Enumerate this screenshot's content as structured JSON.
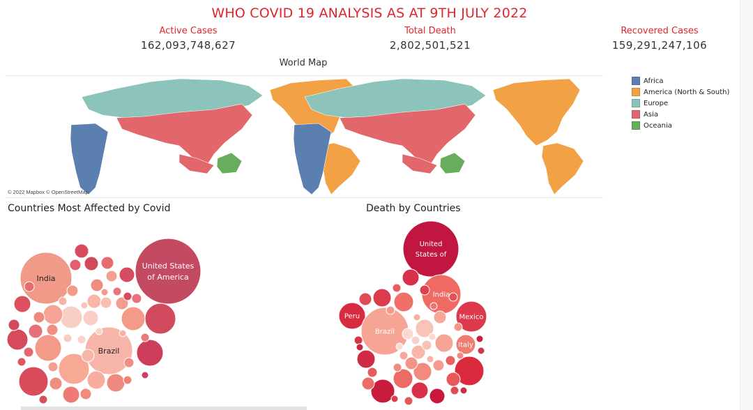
{
  "title": "WHO COVID 19 ANALYSIS AS AT 9TH JULY 2022",
  "kpis": {
    "active": {
      "label": "Active Cases",
      "value": "162,093,748,627"
    },
    "death": {
      "label": "Total Death",
      "value": "2,802,501,521"
    },
    "recovered": {
      "label": "Recovered Cases",
      "value": "159,291,247,106"
    }
  },
  "map": {
    "title": "World Map",
    "credit": "© 2022 Mapbox © OpenStreetMap"
  },
  "legend": [
    {
      "label": "Africa",
      "color": "#5b7fae"
    },
    {
      "label": "America (North & South)",
      "color": "#f2a144"
    },
    {
      "label": "Europe",
      "color": "#8cc4bb"
    },
    {
      "label": "Asia",
      "color": "#e2676c"
    },
    {
      "label": "Oceania",
      "color": "#67ad5d"
    }
  ],
  "chart_data": [
    {
      "type": "bubble",
      "title": "Countries Most Affected by Covid",
      "labeled_bubbles": [
        "United States of America",
        "India",
        "Brazil"
      ]
    },
    {
      "type": "bubble",
      "title": "Death by Countries",
      "labeled_bubbles": [
        "United States of",
        "India",
        "Mexico",
        "Peru",
        "Brazil",
        "Italy"
      ]
    }
  ]
}
